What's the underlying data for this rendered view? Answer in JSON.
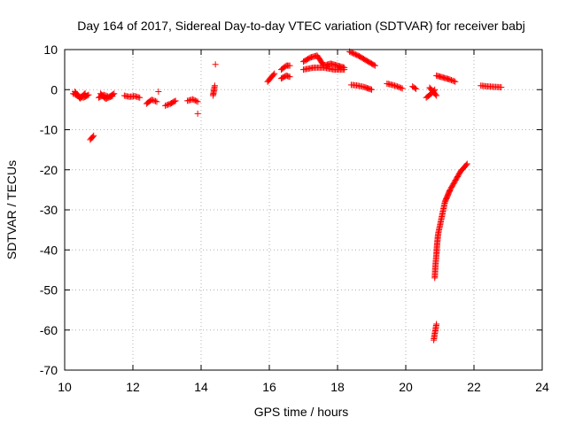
{
  "chart_data": {
    "type": "scatter",
    "title": "Day 164 of 2017, Sidereal Day-to-day VTEC variation (SDTVAR) for receiver babj",
    "xlabel": "GPS time / hours",
    "ylabel": "SDTVAR / TECUs",
    "xlim": [
      10,
      24
    ],
    "ylim": [
      -70,
      10
    ],
    "xticks": [
      10,
      12,
      14,
      16,
      18,
      20,
      22,
      24
    ],
    "yticks": [
      10,
      0,
      -10,
      -20,
      -30,
      -40,
      -50,
      -60,
      -70
    ],
    "grid": true,
    "marker": "+",
    "color": "#ff0000",
    "series": [
      {
        "name": "SDTVAR",
        "segments": [
          {
            "x": [
              10.25,
              10.4,
              10.55,
              10.7
            ],
            "y": [
              -1.0,
              -1.6,
              -2.0,
              -1.3
            ]
          },
          {
            "x": [
              10.3,
              10.45,
              10.6
            ],
            "y": [
              -0.5,
              -2.2,
              -0.9
            ]
          },
          {
            "x": [
              10.75,
              10.85
            ],
            "y": [
              -12.5,
              -11.5
            ]
          },
          {
            "x": [
              11.0,
              11.15,
              11.3,
              11.45
            ],
            "y": [
              -2.0,
              -1.3,
              -1.8,
              -1.0
            ]
          },
          {
            "x": [
              11.05,
              11.2,
              11.4
            ],
            "y": [
              -1.0,
              -2.3,
              -1.6
            ]
          },
          {
            "x": [
              11.75,
              11.9,
              12.05,
              12.2
            ],
            "y": [
              -1.5,
              -1.8,
              -1.6,
              -2.0
            ]
          },
          {
            "x": [
              12.4,
              12.55,
              12.7
            ],
            "y": [
              -3.5,
              -2.5,
              -3.0
            ]
          },
          {
            "x": [
              12.75
            ],
            "y": [
              -0.5
            ]
          },
          {
            "x": [
              12.95,
              13.1,
              13.25
            ],
            "y": [
              -4.0,
              -3.5,
              -2.8
            ]
          },
          {
            "x": [
              13.6,
              13.75,
              13.9
            ],
            "y": [
              -2.8,
              -2.4,
              -3.0
            ]
          },
          {
            "x": [
              13.9
            ],
            "y": [
              -6.0
            ]
          },
          {
            "x": [
              14.35,
              14.38,
              14.4
            ],
            "y": [
              -1.5,
              0.0,
              1.0
            ]
          },
          {
            "x": [
              14.42
            ],
            "y": [
              6.3
            ]
          },
          {
            "x": [
              15.95,
              16.05,
              16.15
            ],
            "y": [
              2.0,
              3.0,
              4.0
            ]
          },
          {
            "x": [
              16.35,
              16.5,
              16.6
            ],
            "y": [
              5.0,
              6.0,
              6.0
            ]
          },
          {
            "x": [
              16.35,
              16.5,
              16.6
            ],
            "y": [
              2.8,
              3.5,
              3.2
            ]
          },
          {
            "x": [
              17.0,
              17.2,
              17.4,
              17.6,
              17.8,
              18.0,
              18.2
            ],
            "y": [
              7.0,
              8.0,
              8.5,
              6.0,
              6.5,
              6.0,
              5.5
            ]
          },
          {
            "x": [
              17.0,
              17.3,
              17.6,
              17.9,
              18.2
            ],
            "y": [
              5.0,
              5.5,
              5.5,
              5.0,
              5.0
            ]
          },
          {
            "x": [
              18.35,
              18.6,
              18.9,
              19.1
            ],
            "y": [
              9.5,
              8.5,
              7.0,
              6.0
            ]
          },
          {
            "x": [
              18.4,
              18.6,
              18.8,
              19.0
            ],
            "y": [
              1.2,
              1.0,
              0.6,
              0.0
            ]
          },
          {
            "x": [
              19.45,
              19.6,
              19.75,
              19.9
            ],
            "y": [
              1.5,
              1.2,
              0.8,
              0.3
            ]
          },
          {
            "x": [
              20.2,
              20.3
            ],
            "y": [
              0.8,
              0.2
            ]
          },
          {
            "x": [
              20.6,
              20.75,
              20.85
            ],
            "y": [
              -2.0,
              -1.0,
              0.0
            ]
          },
          {
            "x": [
              20.7,
              20.9
            ],
            "y": [
              0.5,
              -1.5
            ]
          },
          {
            "x": [
              20.9,
              21.1,
              21.3,
              21.45
            ],
            "y": [
              3.5,
              3.0,
              2.5,
              2.0
            ]
          },
          {
            "x": [
              22.2,
              22.4,
              22.6,
              22.8
            ],
            "y": [
              1.0,
              0.8,
              0.7,
              0.6
            ]
          },
          {
            "x": [
              20.85,
              20.87,
              20.9,
              20.92,
              20.95,
              21.0,
              21.05,
              21.1,
              21.15,
              21.2,
              21.25,
              21.3,
              21.4,
              21.5,
              21.6,
              21.7,
              21.8
            ],
            "y": [
              -47.0,
              -44.0,
              -41.0,
              -38.5,
              -36.0,
              -34.0,
              -32.0,
              -30.0,
              -28.0,
              -27.0,
              -26.0,
              -25.0,
              -23.5,
              -22.0,
              -20.5,
              -19.5,
              -18.5
            ]
          },
          {
            "x": [
              20.82,
              20.84,
              20.86,
              20.88,
              20.9
            ],
            "y": [
              -62.5,
              -61.5,
              -60.5,
              -59.5,
              -58.5
            ]
          }
        ]
      }
    ]
  }
}
